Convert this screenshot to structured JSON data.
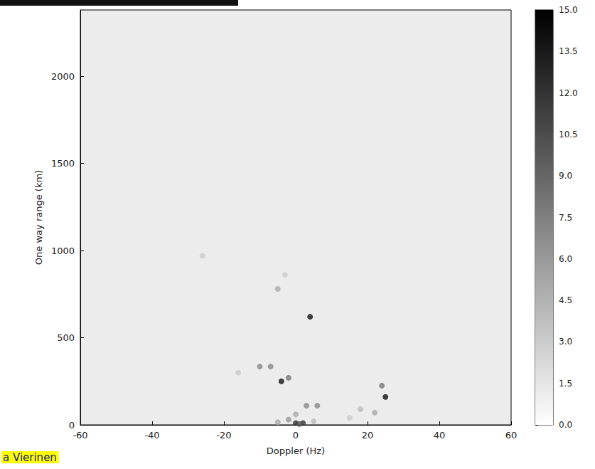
{
  "chart_data": {
    "type": "heatmap",
    "x_label": "Doppler (Hz)",
    "y_label": "One way range (km)",
    "xlim": [
      -60,
      60
    ],
    "xticks": [
      -60,
      -40,
      -20,
      0,
      20,
      40,
      60
    ],
    "ylim": [
      0,
      2380
    ],
    "yticks": [
      0,
      500,
      1000,
      1500,
      2000
    ],
    "marker": "circle",
    "cells": [
      [
        4,
        620,
        14
      ],
      [
        -4,
        250,
        14
      ],
      [
        -2,
        270,
        8
      ],
      [
        -10,
        335,
        7
      ],
      [
        -7,
        335,
        7
      ],
      [
        25,
        160,
        14
      ],
      [
        24,
        225,
        8
      ],
      [
        3,
        110,
        7
      ],
      [
        6,
        110,
        7
      ],
      [
        -5,
        780,
        5
      ],
      [
        -3,
        860,
        3
      ],
      [
        -16,
        300,
        3
      ],
      [
        18,
        90,
        4
      ],
      [
        15,
        40,
        3
      ],
      [
        0,
        10,
        12
      ],
      [
        2,
        10,
        12
      ],
      [
        -2,
        30,
        6
      ],
      [
        0,
        60,
        5
      ],
      [
        -5,
        15,
        5
      ],
      [
        5,
        20,
        4
      ],
      [
        1,
        5,
        10
      ],
      [
        -26,
        970,
        3
      ],
      [
        22,
        70,
        5
      ]
    ],
    "colorbar": {
      "range": [
        0,
        15
      ],
      "ticks": [
        {
          "value": 0,
          "label": "0.0"
        },
        {
          "value": 1.5,
          "label": "1.5"
        },
        {
          "value": 3,
          "label": "3.0"
        },
        {
          "value": 4.5,
          "label": "4.5"
        },
        {
          "value": 6,
          "label": "6.0"
        },
        {
          "value": 7.5,
          "label": "7.5"
        },
        {
          "value": 9,
          "label": "9.0"
        },
        {
          "value": 10.5,
          "label": "10.5"
        },
        {
          "value": 12,
          "label": "12.0"
        },
        {
          "value": 13.5,
          "label": "13.5"
        },
        {
          "value": 15,
          "label": "15.0"
        }
      ]
    },
    "annotation": "a Vierinen"
  }
}
